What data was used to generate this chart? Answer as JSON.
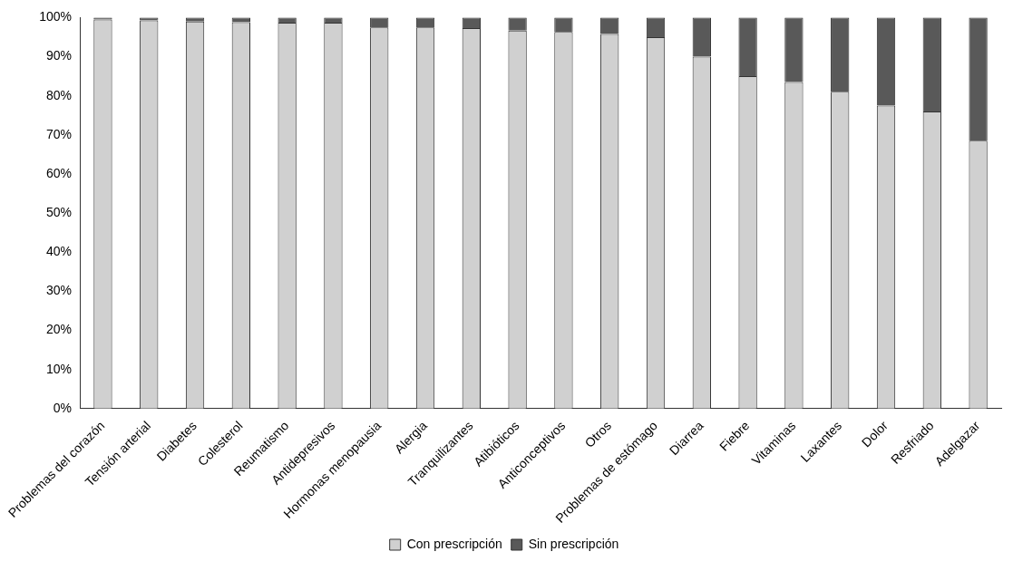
{
  "chart_data": {
    "type": "bar",
    "stacked": true,
    "categories": [
      "Problemas del corazón",
      "Tensión arterial",
      "Diabetes",
      "Colesterol",
      "Reumatismo",
      "Antidepresivos",
      "Hormonas menopausia",
      "Alergia",
      "Tranquilizantes",
      "Atibióticos",
      "Anticonceptivos",
      "Otros",
      "Problemas de estómago",
      "Diarrea",
      "Fiebre",
      "Vitaminas",
      "Laxantes",
      "Dolor",
      "Resfriado",
      "Adelgazar"
    ],
    "series": [
      {
        "name": "Con prescripción",
        "color": "#d0d0d0",
        "values": [
          99.5,
          99.3,
          99,
          98.8,
          98.7,
          98.7,
          97.5,
          97.5,
          97.3,
          96.7,
          96.3,
          95.8,
          95,
          90,
          85,
          83.5,
          81,
          77.5,
          76,
          68.5
        ]
      },
      {
        "name": "Sin prescripción",
        "color": "#595959",
        "values": [
          0.5,
          0.7,
          1,
          1.2,
          1.3,
          1.3,
          2.5,
          2.5,
          2.7,
          3.3,
          3.7,
          4.2,
          5,
          10,
          15,
          16.5,
          19,
          22.5,
          24,
          31.5
        ]
      }
    ],
    "ylim": [
      0,
      100
    ],
    "yticks": [
      {
        "value": 0,
        "label": "0%"
      },
      {
        "value": 10,
        "label": "10%"
      },
      {
        "value": 20,
        "label": "20%"
      },
      {
        "value": 30,
        "label": "30%"
      },
      {
        "value": 40,
        "label": "40%"
      },
      {
        "value": 50,
        "label": "50%"
      },
      {
        "value": 60,
        "label": "60%"
      },
      {
        "value": 70,
        "label": "70%"
      },
      {
        "value": 80,
        "label": "80%"
      },
      {
        "value": 90,
        "label": "90%"
      },
      {
        "value": 100,
        "label": "100%"
      }
    ],
    "grid": false,
    "legend": "bottom"
  }
}
